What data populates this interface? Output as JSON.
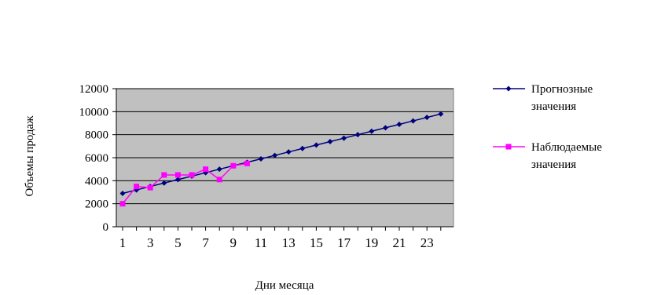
{
  "chart_data": {
    "type": "line",
    "xlabel": "Дни месяца",
    "ylabel": "Объемы продаж",
    "ylim": [
      0,
      12000
    ],
    "yticks": [
      0,
      2000,
      4000,
      6000,
      8000,
      10000,
      12000
    ],
    "xlim": [
      1,
      24
    ],
    "xticks": [
      1,
      3,
      5,
      7,
      9,
      11,
      13,
      15,
      17,
      19,
      21,
      23
    ],
    "grid": "horizontal",
    "plot_background": "#c0c0c0",
    "legend_position": "right",
    "series": [
      {
        "name": "Прогнозные значения",
        "name_lines": [
          "Прогнозные",
          "значения"
        ],
        "color": "#00007f",
        "marker": "diamond",
        "x": [
          1,
          2,
          3,
          4,
          5,
          6,
          7,
          8,
          9,
          10,
          11,
          12,
          13,
          14,
          15,
          16,
          17,
          18,
          19,
          20,
          21,
          22,
          23,
          24
        ],
        "values": [
          2900,
          3200,
          3500,
          3800,
          4100,
          4400,
          4700,
          5000,
          5300,
          5600,
          5900,
          6200,
          6500,
          6800,
          7100,
          7400,
          7700,
          8000,
          8300,
          8600,
          8900,
          9200,
          9500,
          9800
        ]
      },
      {
        "name": "Наблюдаемые значения",
        "name_lines": [
          "Наблюдаемые",
          "значения"
        ],
        "color": "#ff00ff",
        "marker": "square",
        "x": [
          1,
          2,
          3,
          4,
          5,
          6,
          7,
          8,
          9,
          10
        ],
        "values": [
          2000,
          3500,
          3400,
          4500,
          4500,
          4500,
          5000,
          4100,
          5300,
          5500
        ]
      }
    ]
  }
}
